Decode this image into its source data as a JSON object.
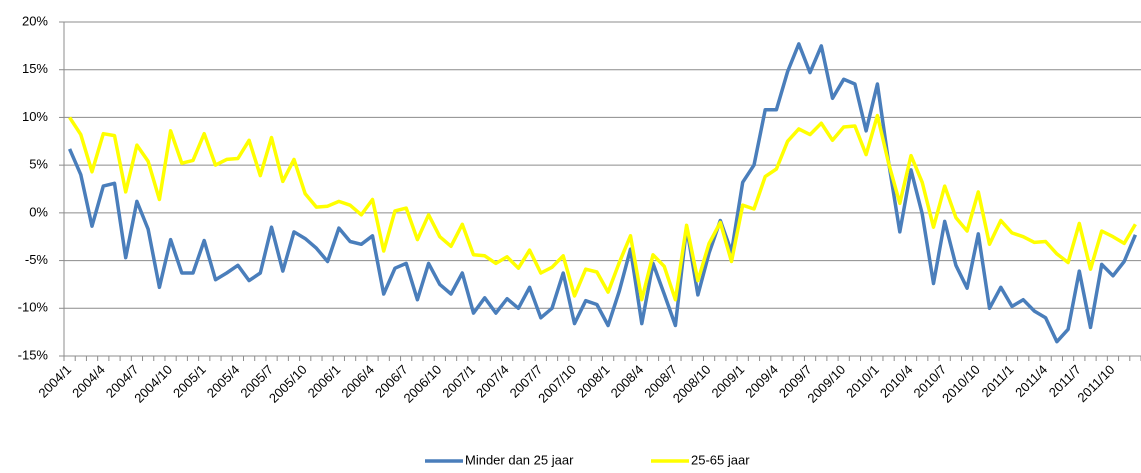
{
  "chart_data": {
    "type": "line",
    "categories": [
      "2004/1",
      null,
      null,
      "2004/4",
      null,
      null,
      "2004/7",
      null,
      null,
      "2004/10",
      null,
      null,
      "2005/1",
      null,
      null,
      "2005/4",
      null,
      null,
      "2005/7",
      null,
      null,
      "2005/10",
      null,
      null,
      "2006/1",
      null,
      null,
      "2006/4",
      null,
      null,
      "2006/7",
      null,
      null,
      "2006/10",
      null,
      null,
      "2007/1",
      null,
      null,
      "2007/4",
      null,
      null,
      "2007/7",
      null,
      null,
      "2007/10",
      null,
      null,
      "2008/1",
      null,
      null,
      "2008/4",
      null,
      null,
      "2008/7",
      null,
      null,
      "2008/10",
      null,
      null,
      "2009/1",
      null,
      null,
      "2009/4",
      null,
      null,
      "2009/7",
      null,
      null,
      "2009/10",
      null,
      null,
      "2010/1",
      null,
      null,
      "2010/4",
      null,
      null,
      "2010/7",
      null,
      null,
      "2010/10",
      null,
      null,
      "2011/1",
      null,
      null,
      "2011/4",
      null,
      null,
      "2011/7",
      null,
      null,
      "2011/10",
      null,
      null
    ],
    "series": [
      {
        "name": "Minder dan 25 jaar",
        "color": "#4a7ebb",
        "values": [
          6.7,
          4,
          -1.4,
          2.8,
          3.1,
          -4.7,
          1.2,
          -1.7,
          -7.8,
          -2.8,
          -6.3,
          -6.3,
          -2.9,
          -7,
          -6.3,
          -5.5,
          -7.1,
          -6.3,
          -1.5,
          -6.1,
          -2,
          -2.7,
          -3.7,
          -5.1,
          -1.6,
          -3,
          -3.3,
          -2.4,
          -8.5,
          -5.8,
          -5.3,
          -9.1,
          -5.3,
          -7.5,
          -8.5,
          -6.3,
          -10.5,
          -8.9,
          -10.5,
          -9,
          -10,
          -7.8,
          -11,
          -10,
          -6.3,
          -11.6,
          -9.2,
          -9.6,
          -11.8,
          -8.2,
          -3.8,
          -11.6,
          -5.3,
          -8.5,
          -11.8,
          -1.5,
          -8.6,
          -4.2,
          -0.8,
          -4.1,
          3.2,
          5,
          10.8,
          10.8,
          14.8,
          17.7,
          14.7,
          17.5,
          12,
          14,
          13.5,
          8.6,
          13.5,
          5.3,
          -2,
          4.5,
          -0.1,
          -7.4,
          -0.9,
          -5.5,
          -7.9,
          -2.2,
          -10,
          -7.8,
          -9.8,
          -9.1,
          -10.3,
          -11,
          -13.5,
          -12.2,
          -6.1,
          -12,
          -5.4,
          -6.6,
          -5.1,
          -2.3
        ]
      },
      {
        "name": "25-65 jaar",
        "color": "#ffff00",
        "values": [
          10,
          8.2,
          4.3,
          8.3,
          8.1,
          2.2,
          7.1,
          5.4,
          1.4,
          8.6,
          5.2,
          5.5,
          8.3,
          5,
          5.6,
          5.7,
          7.6,
          3.9,
          7.9,
          3.3,
          5.6,
          2,
          0.6,
          0.7,
          1.2,
          0.8,
          -0.2,
          1.4,
          -4,
          0.2,
          0.5,
          -2.8,
          -0.2,
          -2.5,
          -3.5,
          -1.2,
          -4.4,
          -4.5,
          -5.3,
          -4.6,
          -5.8,
          -3.9,
          -6.3,
          -5.7,
          -4.5,
          -8.7,
          -5.9,
          -6.2,
          -8.3,
          -5.2,
          -2.4,
          -9.1,
          -4.4,
          -5.6,
          -9.1,
          -1.3,
          -7.1,
          -3.2,
          -1,
          -5.1,
          0.8,
          0.4,
          3.8,
          4.6,
          7.5,
          8.8,
          8.2,
          9.4,
          7.6,
          9,
          9.1,
          6.1,
          10.2,
          5.2,
          1,
          6,
          3.2,
          -1.5,
          2.8,
          -0.5,
          -1.9,
          2.2,
          -3.3,
          -0.8,
          -2.1,
          -2.5,
          -3.1,
          -3,
          -4.3,
          -5.2,
          -1.1,
          -5.9,
          -1.9,
          -2.5,
          -3.2,
          -1.2
        ]
      }
    ],
    "ylim": [
      -15,
      20
    ],
    "yticks": [
      {
        "value": -15,
        "label": "-15%"
      },
      {
        "value": -10,
        "label": "-10%"
      },
      {
        "value": -5,
        "label": "-5%"
      },
      {
        "value": 0,
        "label": "0%"
      },
      {
        "value": 5,
        "label": "5%"
      },
      {
        "value": 10,
        "label": "10%"
      },
      {
        "value": 15,
        "label": "15%"
      },
      {
        "value": 20,
        "label": "20%"
      }
    ],
    "grid": true
  }
}
